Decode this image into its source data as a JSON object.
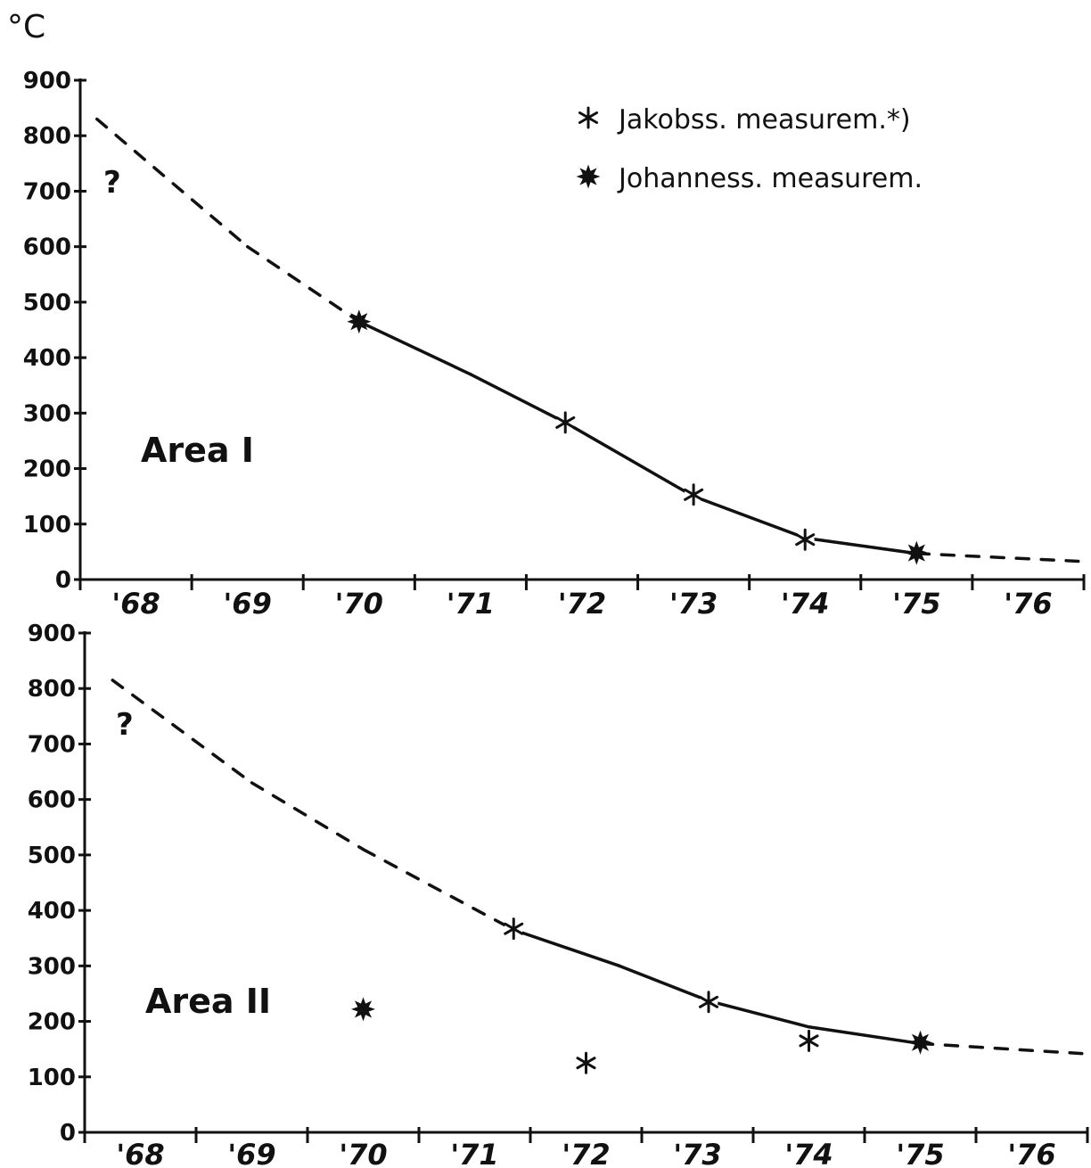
{
  "unit_label": "°C",
  "legend": [
    {
      "marker": "jakobsson",
      "label": "Jakobss.  measurem.*)"
    },
    {
      "marker": "johannesson",
      "label": "Johanness.  measurem."
    }
  ],
  "chart_data": [
    {
      "type": "line",
      "title": "Area I",
      "ylabel": "°C",
      "xlabel": "",
      "ylim": [
        0,
        900
      ],
      "yticks": [
        0,
        100,
        200,
        300,
        400,
        500,
        600,
        700,
        800,
        900
      ],
      "categories": [
        "'68",
        "'69",
        "'70",
        "'71",
        "'72",
        "'73",
        "'74",
        "'75",
        "'76"
      ],
      "annotation": "?",
      "curve": [
        {
          "x": 67.65,
          "y": 830,
          "segment": "dashed"
        },
        {
          "x": 69.0,
          "y": 600,
          "segment": "dashed"
        },
        {
          "x": 70.0,
          "y": 465,
          "segment": "solid"
        },
        {
          "x": 71.0,
          "y": 370,
          "segment": "solid"
        },
        {
          "x": 71.85,
          "y": 283,
          "segment": "solid"
        },
        {
          "x": 73.0,
          "y": 150,
          "segment": "solid"
        },
        {
          "x": 74.0,
          "y": 75,
          "segment": "solid"
        },
        {
          "x": 75.0,
          "y": 47,
          "segment": "dashed"
        },
        {
          "x": 76.45,
          "y": 33,
          "segment": "dashed"
        }
      ],
      "series": [
        {
          "name": "Jakobss.  measurem.*)",
          "marker": "jakobsson",
          "x": [
            71.85,
            73.0,
            74.0
          ],
          "y": [
            283,
            153,
            72
          ]
        },
        {
          "name": "Johanness.  measurem.",
          "marker": "johannesson",
          "x": [
            70.0,
            75.0
          ],
          "y": [
            465,
            48
          ]
        }
      ]
    },
    {
      "type": "line",
      "title": "Area II",
      "ylabel": "°C",
      "xlabel": "",
      "ylim": [
        0,
        900
      ],
      "yticks": [
        0,
        100,
        200,
        300,
        400,
        500,
        600,
        700,
        800,
        900
      ],
      "categories": [
        "'68",
        "'69",
        "'70",
        "'71",
        "'72",
        "'73",
        "'74",
        "'75",
        "'76"
      ],
      "annotation": "?",
      "curve": [
        {
          "x": 67.75,
          "y": 815,
          "segment": "dashed"
        },
        {
          "x": 69.0,
          "y": 630,
          "segment": "dashed"
        },
        {
          "x": 70.0,
          "y": 510,
          "segment": "dashed"
        },
        {
          "x": 71.35,
          "y": 365,
          "segment": "solid"
        },
        {
          "x": 72.3,
          "y": 300,
          "segment": "solid"
        },
        {
          "x": 73.1,
          "y": 237,
          "segment": "solid"
        },
        {
          "x": 74.0,
          "y": 190,
          "segment": "solid"
        },
        {
          "x": 75.0,
          "y": 160,
          "segment": "dashed"
        },
        {
          "x": 76.45,
          "y": 142,
          "segment": "dashed"
        }
      ],
      "series": [
        {
          "name": "Jakobss.  measurem.*)",
          "marker": "jakobsson",
          "x": [
            71.35,
            72.0,
            73.1,
            74.0
          ],
          "y": [
            367,
            125,
            235,
            165
          ]
        },
        {
          "name": "Johanness.  measurem.",
          "marker": "johannesson",
          "x": [
            70.0,
            75.0
          ],
          "y": [
            222,
            162
          ]
        }
      ]
    }
  ]
}
